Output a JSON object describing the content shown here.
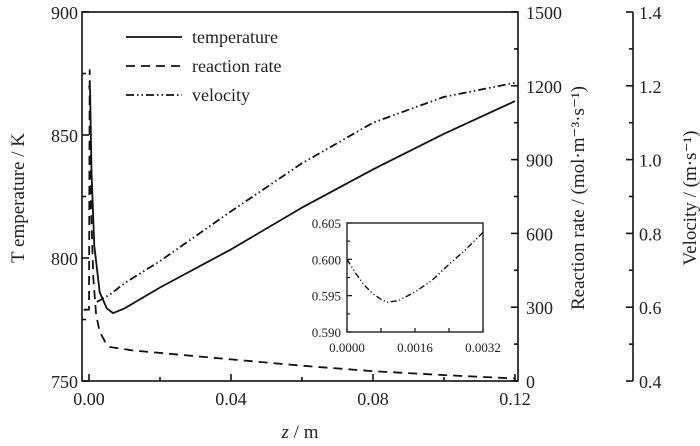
{
  "chart_data": {
    "type": "line",
    "xlabel_var": "z",
    "xlabel_unit": " / m",
    "ylabel_left": "T emperature / K",
    "ylabel_right1": "Reaction rate / (mol·m⁻³·s⁻¹)",
    "ylabel_right2": "Velocity / (m·s⁻¹)",
    "xlim": [
      0,
      0.12
    ],
    "x_ticks": [
      "0.00",
      "0.04",
      "0.08",
      "0.12"
    ],
    "ylim_left": [
      750,
      900
    ],
    "y_left_ticks": [
      "750",
      "800",
      "850",
      "900"
    ],
    "ylim_right1": [
      0,
      1500
    ],
    "y_right1_ticks": [
      "0",
      "300",
      "600",
      "900",
      "1200",
      "1500"
    ],
    "ylim_right2": [
      0.4,
      1.4
    ],
    "y_right2_ticks": [
      "0.4",
      "0.6",
      "0.8",
      "1.0",
      "1.2",
      "1.4"
    ],
    "legend": [
      "temperature",
      "reaction rate",
      "velocity"
    ],
    "legend_position": "top-left",
    "series": [
      {
        "name": "temperature",
        "axis": "left",
        "style": "solid",
        "points": [
          [
            0,
            870
          ],
          [
            0.0003,
            868
          ],
          [
            0.0007,
            835
          ],
          [
            0.0015,
            805
          ],
          [
            0.003,
            786
          ],
          [
            0.005,
            779.5
          ],
          [
            0.0068,
            777.6
          ],
          [
            0.01,
            779.5
          ],
          [
            0.02,
            788
          ],
          [
            0.04,
            803.5
          ],
          [
            0.06,
            820.5
          ],
          [
            0.08,
            836
          ],
          [
            0.1,
            850.5
          ],
          [
            0.12,
            863.8
          ]
        ]
      },
      {
        "name": "reaction rate",
        "axis": "right1",
        "style": "dashed",
        "points": [
          [
            -0.0015,
            290
          ],
          [
            0,
            290
          ],
          [
            0.0002,
            1264
          ],
          [
            0.0006,
            700
          ],
          [
            0.0012,
            420
          ],
          [
            0.002,
            270
          ],
          [
            0.003,
            200
          ],
          [
            0.0045,
            160
          ],
          [
            0.006,
            138
          ],
          [
            0.0125,
            124
          ],
          [
            0.04,
            88
          ],
          [
            0.06,
            62
          ],
          [
            0.08,
            40
          ],
          [
            0.1,
            24
          ],
          [
            0.12,
            10
          ]
        ]
      },
      {
        "name": "velocity",
        "axis": "right2",
        "style": "dash-dot-dot",
        "points": [
          [
            0.0022,
            0.614
          ],
          [
            0.006,
            0.635
          ],
          [
            0.01,
            0.665
          ],
          [
            0.02,
            0.725
          ],
          [
            0.04,
            0.86
          ],
          [
            0.06,
            0.99
          ],
          [
            0.08,
            1.1
          ],
          [
            0.1,
            1.17
          ],
          [
            0.12,
            1.208
          ]
        ]
      }
    ],
    "inset": {
      "series": "velocity",
      "xlim": [
        0,
        0.0032
      ],
      "ylim": [
        0.59,
        0.605
      ],
      "x_ticks": [
        "0.0000",
        "0.0016",
        "0.0032"
      ],
      "y_ticks": [
        "0.590",
        "0.595",
        "0.600",
        "0.605"
      ],
      "points": [
        [
          0,
          0.6
        ],
        [
          0.0002,
          0.5981
        ],
        [
          0.0004,
          0.5965
        ],
        [
          0.0006,
          0.5953
        ],
        [
          0.0008,
          0.5945
        ],
        [
          0.00094,
          0.5941
        ],
        [
          0.0012,
          0.5943
        ],
        [
          0.0016,
          0.5955
        ],
        [
          0.002,
          0.5971
        ],
        [
          0.0024,
          0.5993
        ],
        [
          0.0028,
          0.6014
        ],
        [
          0.0032,
          0.6037
        ]
      ]
    }
  }
}
